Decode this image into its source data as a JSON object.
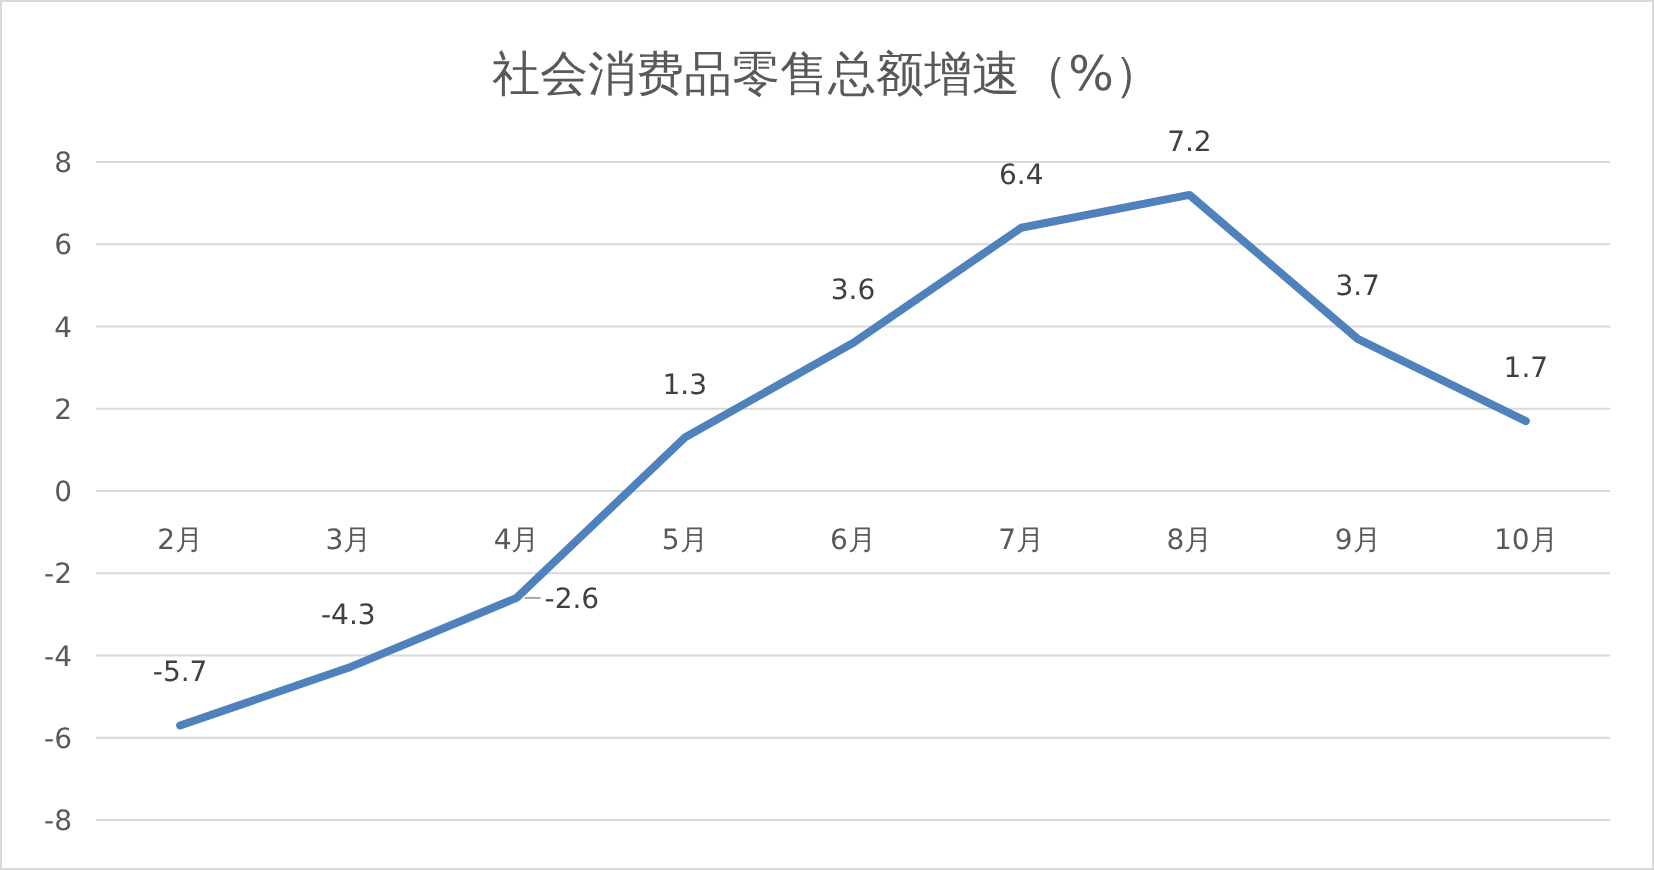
{
  "chart_data": {
    "type": "line",
    "title": "社会消费品零售总额增速（%）",
    "categories": [
      "2月",
      "3月",
      "4月",
      "5月",
      "6月",
      "7月",
      "8月",
      "9月",
      "10月"
    ],
    "series": [
      {
        "color": "#4f81bd",
        "values": [
          -5.7,
          -4.3,
          -2.6,
          1.3,
          3.6,
          6.4,
          7.2,
          3.7,
          1.7
        ]
      }
    ],
    "ylim": [
      -8,
      8
    ],
    "yticks": [
      -8,
      -6,
      -4,
      -2,
      0,
      2,
      4,
      6,
      8
    ],
    "grid": "y",
    "data_labels": true,
    "marker": "none",
    "line_style": "solid"
  }
}
